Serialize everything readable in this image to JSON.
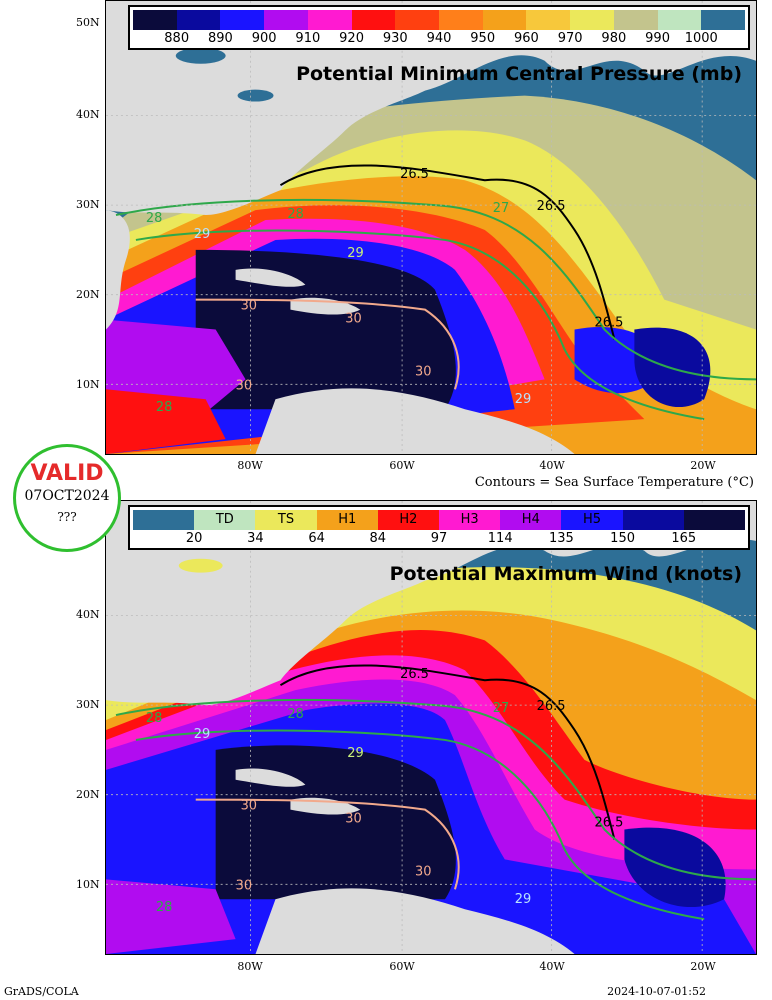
{
  "top_panel": {
    "title": "Potential Minimum Central Pressure (mb)",
    "colorbar_colors": [
      "#0b0b3b",
      "#0a0a9e",
      "#1a14ff",
      "#b10cf0",
      "#ff1ad1",
      "#ff1010",
      "#ff4010",
      "#ff7f1a",
      "#f4a11b",
      "#f7c83b",
      "#ebe85b",
      "#c3c48d",
      "#bfe5bf",
      "#2e6f96"
    ],
    "colorbar_ticks": [
      "880",
      "890",
      "900",
      "910",
      "920",
      "930",
      "940",
      "950",
      "960",
      "970",
      "980",
      "990",
      "1000"
    ]
  },
  "bottom_panel": {
    "title": "Potential Maximum Wind (knots)",
    "colorbar_colors": [
      "#2e6f96",
      "#bfe5bf",
      "#ebe85b",
      "#f4a11b",
      "#ff1010",
      "#ff1ad1",
      "#b10cf0",
      "#1a14ff",
      "#0a0a9e",
      "#0b0b3b"
    ],
    "category_labels": [
      "",
      "TD",
      "TS",
      "H1",
      "H2",
      "H3",
      "H4",
      "H5",
      "",
      ""
    ],
    "colorbar_ticks": [
      "20",
      "34",
      "64",
      "84",
      "97",
      "114",
      "135",
      "150",
      "165"
    ]
  },
  "axes": {
    "lat_labels": [
      "50N",
      "40N",
      "30N",
      "20N",
      "10N"
    ],
    "lon_labels": [
      "80W",
      "60W",
      "40W",
      "20W"
    ]
  },
  "contour_labels": {
    "isotherm_265": "26.5",
    "isotherm_27": "27",
    "isotherm_28": "28",
    "isotherm_29": "29",
    "isotherm_30": "30"
  },
  "contours_caption": "Contours = Sea Surface Temperature (°C)",
  "valid_badge": {
    "word": "VALID",
    "date": "07OCT2024",
    "extra": "???"
  },
  "footer": {
    "left": "GrADS/COLA",
    "right": "2024-10-07-01:52"
  }
}
